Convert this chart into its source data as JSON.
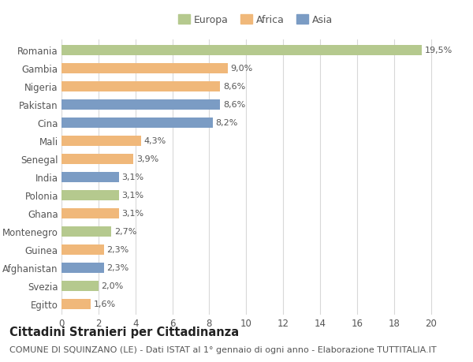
{
  "categories": [
    "Romania",
    "Gambia",
    "Nigeria",
    "Pakistan",
    "Cina",
    "Mali",
    "Senegal",
    "India",
    "Polonia",
    "Ghana",
    "Montenegro",
    "Guinea",
    "Afghanistan",
    "Svezia",
    "Egitto"
  ],
  "values": [
    19.5,
    9.0,
    8.6,
    8.6,
    8.2,
    4.3,
    3.9,
    3.1,
    3.1,
    3.1,
    2.7,
    2.3,
    2.3,
    2.0,
    1.6
  ],
  "labels": [
    "19,5%",
    "9,0%",
    "8,6%",
    "8,6%",
    "8,2%",
    "4,3%",
    "3,9%",
    "3,1%",
    "3,1%",
    "3,1%",
    "2,7%",
    "2,3%",
    "2,3%",
    "2,0%",
    "1,6%"
  ],
  "continents": [
    "Europa",
    "Africa",
    "Africa",
    "Asia",
    "Asia",
    "Africa",
    "Africa",
    "Asia",
    "Europa",
    "Africa",
    "Europa",
    "Africa",
    "Asia",
    "Europa",
    "Africa"
  ],
  "colors": {
    "Europa": "#b5c98e",
    "Africa": "#f0b87a",
    "Asia": "#7b9cc4"
  },
  "legend_order": [
    "Europa",
    "Africa",
    "Asia"
  ],
  "xlim": [
    0,
    21
  ],
  "xticks": [
    0,
    2,
    4,
    6,
    8,
    10,
    12,
    14,
    16,
    18,
    20
  ],
  "background_color": "#ffffff",
  "grid_color": "#d8d8d8",
  "bar_height": 0.55,
  "title": "Cittadini Stranieri per Cittadinanza",
  "subtitle": "COMUNE DI SQUINZANO (LE) - Dati ISTAT al 1° gennaio di ogni anno - Elaborazione TUTTITALIA.IT",
  "label_fontsize": 8,
  "axis_label_fontsize": 8.5,
  "title_fontsize": 10.5,
  "subtitle_fontsize": 8,
  "legend_fontsize": 9,
  "text_color": "#555555",
  "title_color": "#222222"
}
